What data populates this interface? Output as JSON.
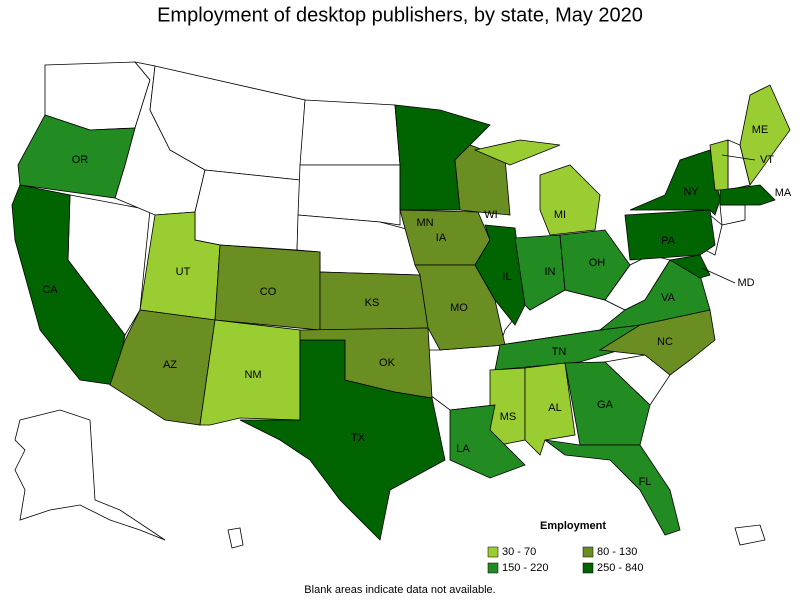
{
  "title": "Employment of desktop publishers, by state, May 2020",
  "legend": {
    "title": "Employment",
    "items": [
      {
        "label": "30 - 70",
        "color": "#9acd32"
      },
      {
        "label": "80 - 130",
        "color": "#6b8e23"
      },
      {
        "label": "150 - 220",
        "color": "#228b22"
      },
      {
        "label": "250 - 840",
        "color": "#006400"
      }
    ]
  },
  "states": [
    {
      "label": "OR",
      "range": "150 - 220"
    },
    {
      "label": "CA",
      "range": "250 - 840"
    },
    {
      "label": "UT",
      "range": "30 - 70"
    },
    {
      "label": "AZ",
      "range": "80 - 130"
    },
    {
      "label": "CO",
      "range": "80 - 130"
    },
    {
      "label": "NM",
      "range": "30 - 70"
    },
    {
      "label": "TX",
      "range": "250 - 840"
    },
    {
      "label": "KS",
      "range": "80 - 130"
    },
    {
      "label": "OK",
      "range": "80 - 130"
    },
    {
      "label": "MN",
      "range": "250 - 840"
    },
    {
      "label": "IA",
      "range": "80 - 130"
    },
    {
      "label": "MO",
      "range": "80 - 130"
    },
    {
      "label": "WI",
      "range": "80 - 130"
    },
    {
      "label": "IL",
      "range": "250 - 840"
    },
    {
      "label": "MI",
      "range": "30 - 70"
    },
    {
      "label": "IN",
      "range": "150 - 220"
    },
    {
      "label": "OH",
      "range": "150 - 220"
    },
    {
      "label": "TN",
      "range": "150 - 220"
    },
    {
      "label": "MS",
      "range": "30 - 70"
    },
    {
      "label": "AL",
      "range": "30 - 70"
    },
    {
      "label": "GA",
      "range": "150 - 220"
    },
    {
      "label": "FL",
      "range": "150 - 220"
    },
    {
      "label": "LA",
      "range": "150 - 220"
    },
    {
      "label": "NC",
      "range": "80 - 130"
    },
    {
      "label": "VA",
      "range": "150 - 220"
    },
    {
      "label": "PA",
      "range": "250 - 840"
    },
    {
      "label": "NY",
      "range": "250 - 840"
    },
    {
      "label": "MD",
      "range": "250 - 840"
    },
    {
      "label": "ME",
      "range": "30 - 70"
    },
    {
      "label": "VT",
      "range": "30 - 70"
    },
    {
      "label": "MA",
      "range": "250 - 840"
    }
  ],
  "footnote": "Blank areas indicate data not available."
}
